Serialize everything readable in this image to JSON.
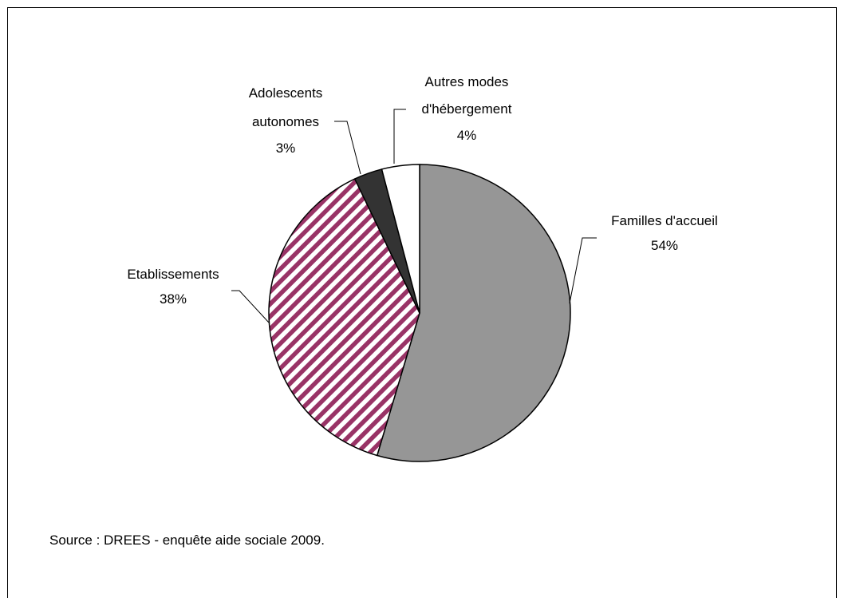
{
  "chart_data": {
    "type": "pie",
    "title": "",
    "slices": [
      {
        "label": "Familles d'accueil",
        "value": 54,
        "value_label": "54%",
        "fill": "#969696",
        "pattern": "solid"
      },
      {
        "label": "Etablissements",
        "value": 38,
        "value_label": "38%",
        "fill": "#ffffff",
        "pattern": "diagonal-stripes",
        "stripe_color": "#993366"
      },
      {
        "label": "Adolescents autonomes",
        "value": 3,
        "value_label": "3%",
        "fill": "#333333",
        "pattern": "solid"
      },
      {
        "label": "Autres modes d'hébergement",
        "value": 4,
        "value_label": "4%",
        "fill": "#ffffff",
        "pattern": "solid"
      }
    ],
    "labels": {
      "familles": [
        "Familles d'accueil",
        "54%"
      ],
      "etablissements": [
        "Etablissements",
        "38%"
      ],
      "adolescents": [
        "Adolescents",
        "autonomes",
        "3%"
      ],
      "autres": [
        "Autres modes",
        "d'hébergement",
        "4%"
      ]
    },
    "source": "Source : DREES - enquête aide sociale 2009."
  }
}
